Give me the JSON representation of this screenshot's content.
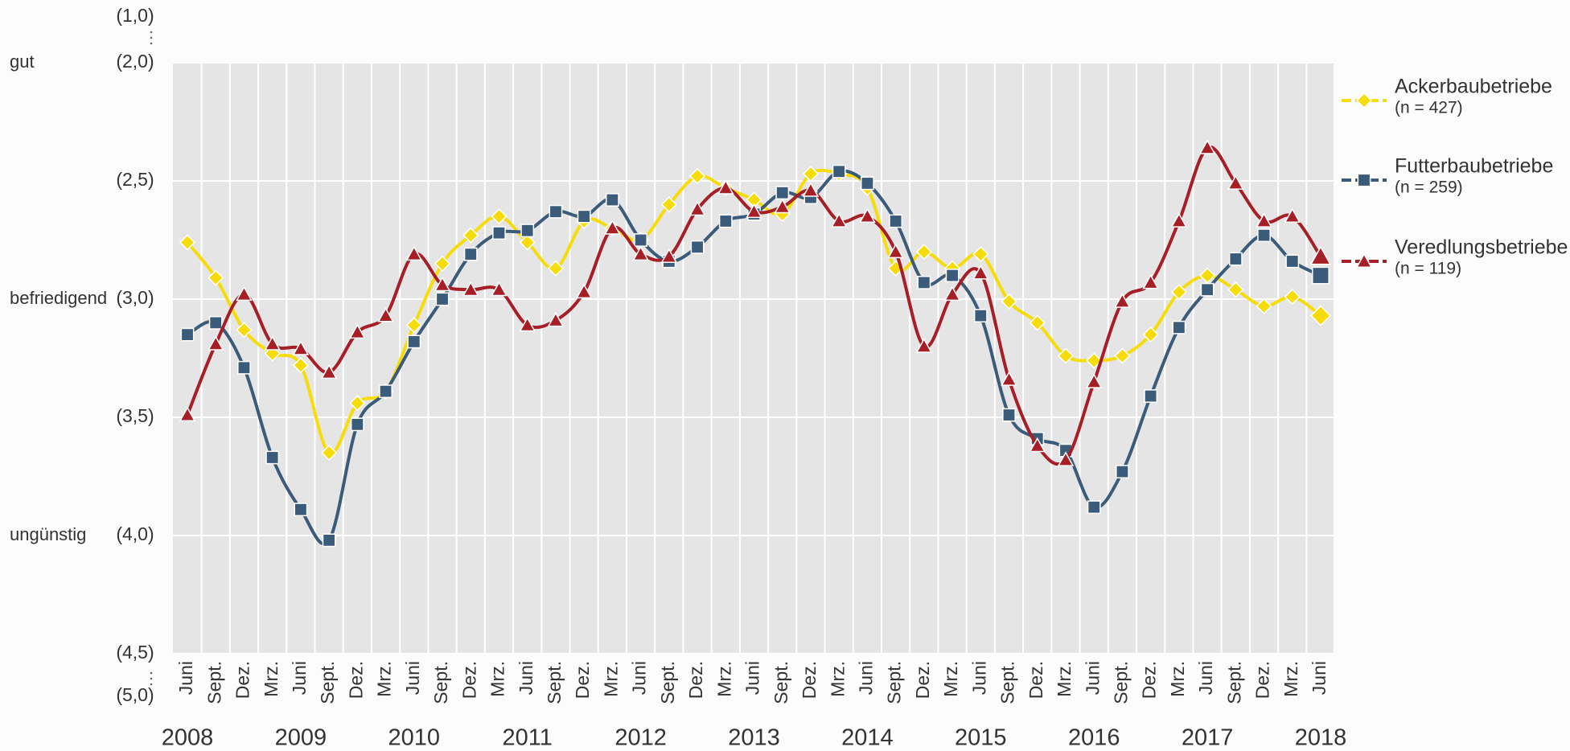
{
  "chart_data": {
    "type": "line",
    "categories": [
      "Juni",
      "Sept.",
      "Dez.",
      "Mrz.",
      "Juni",
      "Sept.",
      "Dez.",
      "Mrz.",
      "Juni",
      "Sept.",
      "Dez.",
      "Mrz.",
      "Juni",
      "Sept.",
      "Dez.",
      "Mrz.",
      "Juni",
      "Sept.",
      "Dez.",
      "Mrz.",
      "Juni",
      "Sept.",
      "Dez.",
      "Mrz.",
      "Juni",
      "Sept.",
      "Dez.",
      "Mrz.",
      "Juni",
      "Sept.",
      "Dez.",
      "Mrz.",
      "Juni",
      "Sept.",
      "Dez.",
      "Mrz.",
      "Juni",
      "Sept.",
      "Dez.",
      "Mrz.",
      "Juni"
    ],
    "years": [
      "2008",
      "2009",
      "2010",
      "2011",
      "2012",
      "2013",
      "2014",
      "2015",
      "2016",
      "2017",
      "2018"
    ],
    "ylim": [
      4.5,
      2.0
    ],
    "yticks": [
      {
        "value": 2.0,
        "label": "(2,0)"
      },
      {
        "value": 2.5,
        "label": "(2,5)"
      },
      {
        "value": 3.0,
        "label": "(3,0)"
      },
      {
        "value": 3.5,
        "label": "(3,5)"
      },
      {
        "value": 4.0,
        "label": "(4,0)"
      },
      {
        "value": 4.5,
        "label": "(4,5)"
      }
    ],
    "y_break_ticks": [
      {
        "value": 1.0,
        "label": "(1,0)"
      },
      {
        "value": 5.0,
        "label": "(5,0)"
      }
    ],
    "y_ratings": [
      {
        "value": 2.0,
        "label": "gut"
      },
      {
        "value": 3.0,
        "label": "befriedigend"
      },
      {
        "value": 4.0,
        "label": "ungünstig"
      }
    ],
    "grid": true,
    "legend": "right",
    "series": [
      {
        "name": "Ackerbaubetriebe",
        "n_label": "(n = 427)",
        "color": "#f7dc0c",
        "marker": "diamond",
        "values": [
          2.76,
          2.91,
          3.13,
          3.23,
          3.28,
          3.65,
          3.44,
          3.39,
          3.11,
          2.85,
          2.73,
          2.65,
          2.76,
          2.87,
          2.67,
          2.7,
          2.75,
          2.6,
          2.48,
          2.53,
          2.58,
          2.64,
          2.47,
          2.47,
          2.53,
          2.87,
          2.8,
          2.87,
          2.81,
          3.01,
          3.1,
          3.24,
          3.26,
          3.24,
          3.15,
          2.97,
          2.9,
          2.96,
          3.03,
          2.99,
          3.07
        ]
      },
      {
        "name": "Futterbaubetriebe",
        "n_label": "(n = 259)",
        "color": "#3b5b7a",
        "marker": "square",
        "values": [
          3.15,
          3.1,
          3.29,
          3.67,
          3.89,
          4.02,
          3.53,
          3.39,
          3.18,
          3.0,
          2.81,
          2.72,
          2.71,
          2.63,
          2.65,
          2.58,
          2.75,
          2.84,
          2.78,
          2.67,
          2.64,
          2.55,
          2.57,
          2.46,
          2.51,
          2.67,
          2.93,
          2.9,
          3.07,
          3.49,
          3.59,
          3.64,
          3.88,
          3.73,
          3.41,
          3.12,
          2.96,
          2.83,
          2.73,
          2.84,
          2.9
        ]
      },
      {
        "name": "Veredlungsbetriebe",
        "n_label": "(n = 119)",
        "color": "#a61e26",
        "marker": "triangle",
        "values": [
          3.49,
          3.19,
          2.98,
          3.19,
          3.21,
          3.31,
          3.14,
          3.07,
          2.81,
          2.94,
          2.96,
          2.96,
          3.11,
          3.09,
          2.97,
          2.7,
          2.81,
          2.82,
          2.62,
          2.53,
          2.63,
          2.61,
          2.54,
          2.67,
          2.65,
          2.8,
          3.2,
          2.98,
          2.89,
          3.34,
          3.62,
          3.68,
          3.35,
          3.01,
          2.93,
          2.67,
          2.36,
          2.51,
          2.67,
          2.65,
          2.82
        ]
      }
    ]
  }
}
